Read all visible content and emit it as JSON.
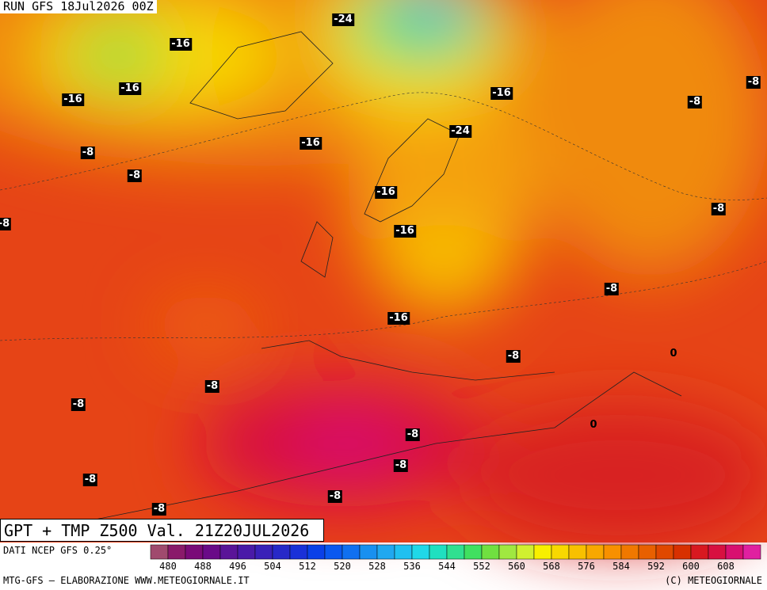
{
  "header": {
    "run": "RUN GFS 18Jul2026 00Z"
  },
  "map": {
    "labels": [
      "-24",
      "-16",
      "-16",
      "-16",
      "-16",
      "-8",
      "-8",
      "-24",
      "-16",
      "-8",
      "-8",
      "-16",
      "-8",
      "-8",
      "-16",
      "-8",
      "-16",
      "-8",
      "0",
      "-8",
      "-8",
      "0",
      "-8",
      "-8",
      "-8",
      "-8",
      "-8"
    ]
  },
  "title": "GPT + TMP Z500 Val. 21Z20JUL2026",
  "source": "DATI NCEP GFS 0.25°",
  "colorbar": {
    "colors": [
      "#a04a6e",
      "#8a1a6a",
      "#7a0a78",
      "#6a0a88",
      "#5a1498",
      "#4a1aa8",
      "#3a20b8",
      "#2828c8",
      "#1a30d8",
      "#0a40e8",
      "#0a58f0",
      "#1070f0",
      "#1890f0",
      "#20a8f0",
      "#20c0f0",
      "#20d8e8",
      "#20e0c0",
      "#30e090",
      "#40e060",
      "#70e040",
      "#a0e840",
      "#d0f030",
      "#f8f000",
      "#f8d800",
      "#f8c000",
      "#f8a800",
      "#f89000",
      "#f07800",
      "#e86000",
      "#e04800",
      "#d83000",
      "#d81820",
      "#d81040",
      "#d81070",
      "#e020a0"
    ],
    "ticks": [
      "480",
      "488",
      "496",
      "504",
      "512",
      "520",
      "528",
      "536",
      "544",
      "552",
      "560",
      "568",
      "576",
      "584",
      "592",
      "600",
      "608"
    ]
  },
  "footer": {
    "left": "MTG-GFS — ELABORAZIONE WWW.METEOGIORNALE.IT",
    "right": "(C) METEOGIORNALE"
  }
}
